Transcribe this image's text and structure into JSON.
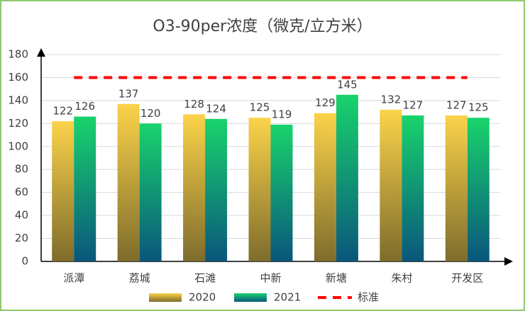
{
  "chart_data": {
    "type": "bar",
    "title": "O3-90per浓度（微克/立方米）",
    "categories": [
      "派潭",
      "荔城",
      "石滩",
      "中新",
      "新塘",
      "朱村",
      "开发区"
    ],
    "series": [
      {
        "name": "2020",
        "color": [
          "#fbd34a",
          "#7e6c2c"
        ],
        "values": [
          122,
          137,
          128,
          125,
          129,
          132,
          127
        ]
      },
      {
        "name": "2021",
        "color": [
          "#19d36c",
          "#0a567c"
        ],
        "values": [
          126,
          120,
          124,
          119,
          145,
          127,
          125
        ]
      },
      {
        "name": "标准",
        "type": "line",
        "dashed": true,
        "color": "#ff0000",
        "values": [
          160,
          160,
          160,
          160,
          160,
          160,
          160
        ]
      }
    ],
    "ylim": [
      0,
      180
    ],
    "yticks": [
      0,
      20,
      40,
      60,
      80,
      100,
      120,
      140,
      160,
      180
    ],
    "grid": true
  }
}
